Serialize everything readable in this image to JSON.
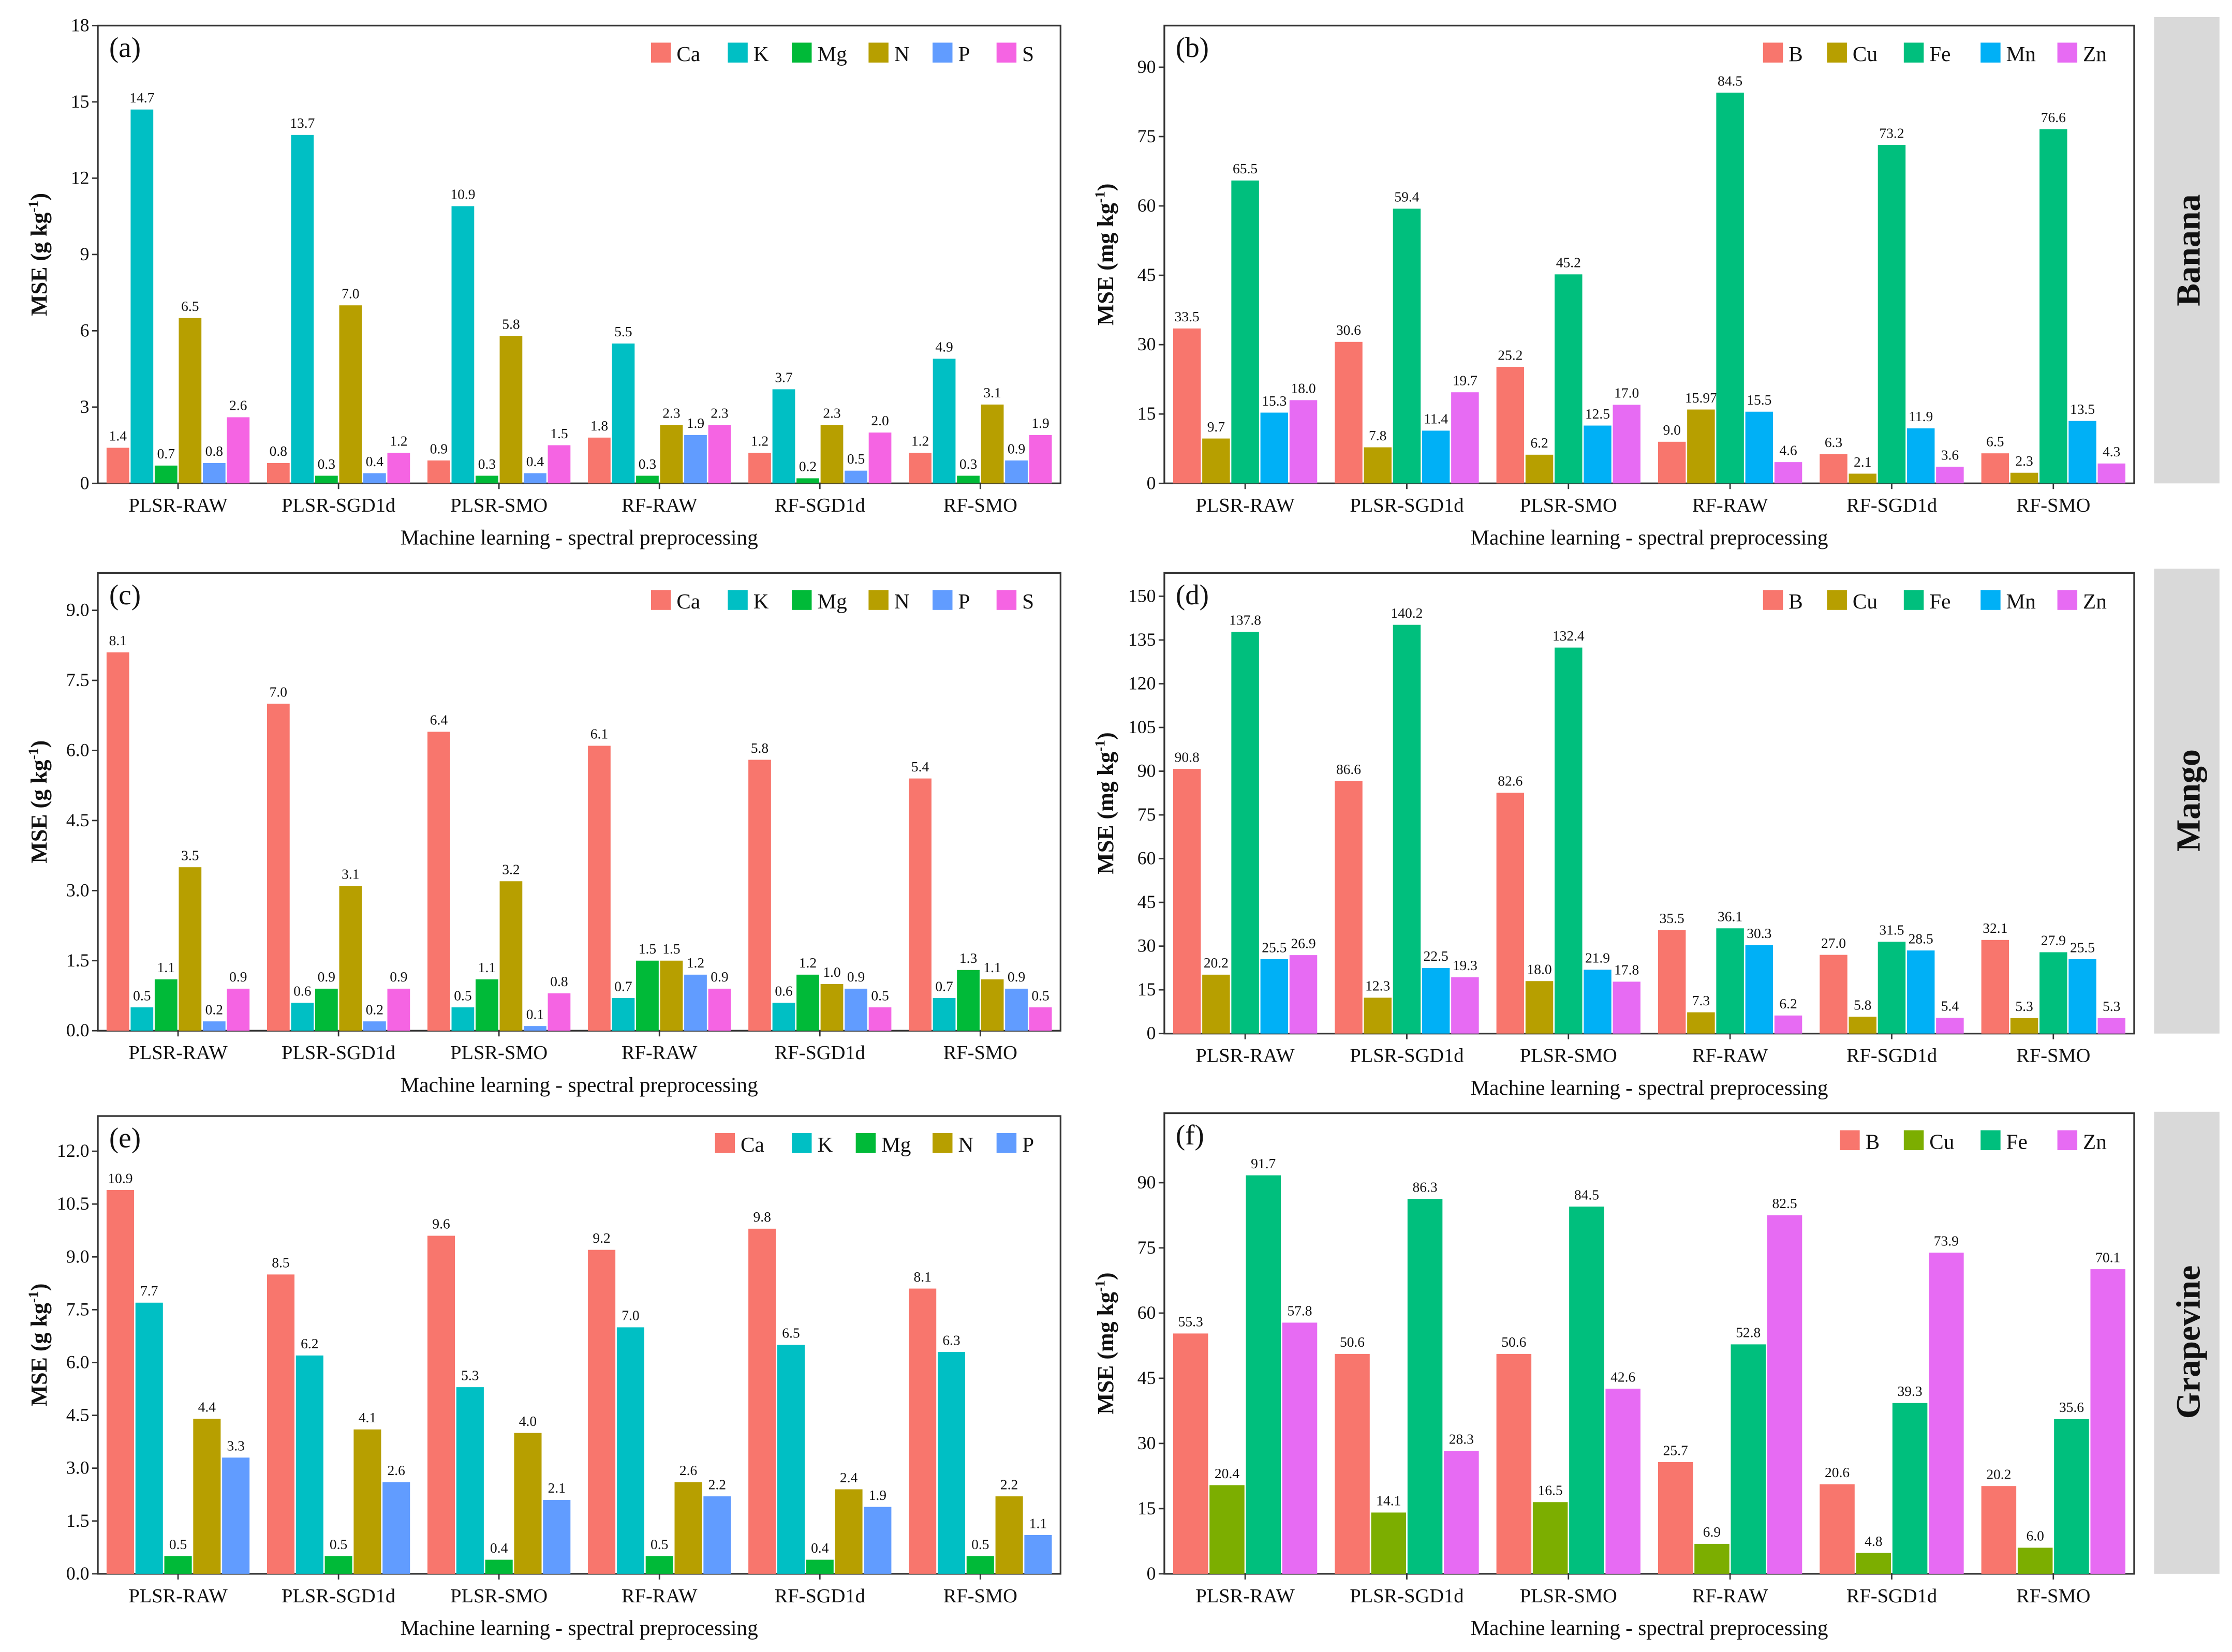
{
  "categories": [
    "PLSR-RAW",
    "PLSR-SGD1d",
    "PLSR-SMO",
    "RF-RAW",
    "RF-SGD1d",
    "RF-SMO"
  ],
  "xlabel": "Machine learning - spectral preprocessing",
  "row_labels": [
    "Banana",
    "Mango",
    "Grapevine"
  ],
  "chart_data": [
    {
      "type": "bar",
      "panel": "(a)",
      "ylabel": "MSE (g kg",
      "ylabel_sup": "-1",
      "ylabel_end": ")",
      "ylim": [
        0,
        18
      ],
      "yticks": [
        0,
        3,
        6,
        9,
        12,
        15,
        18
      ],
      "legend": "top-right",
      "grid": false,
      "series": [
        {
          "name": "Ca",
          "color": "#F8766D",
          "values": [
            1.4,
            0.8,
            0.9,
            1.8,
            1.2,
            1.2
          ],
          "labels": [
            "1.4",
            "0.8",
            "0.9",
            "1.8",
            "1.2",
            "1.2"
          ]
        },
        {
          "name": "K",
          "color": "#00BFC4",
          "values": [
            14.7,
            13.7,
            10.9,
            5.5,
            3.7,
            4.9
          ],
          "labels": [
            "14.7",
            "13.7",
            "10.9",
            "5.5",
            "3.7",
            "4.9"
          ]
        },
        {
          "name": "Mg",
          "color": "#00BA38",
          "values": [
            0.7,
            0.3,
            0.3,
            0.3,
            0.2,
            0.3
          ],
          "labels": [
            "0.7",
            "0.3",
            "0.3",
            "0.3",
            "0.2",
            "0.3"
          ]
        },
        {
          "name": "N",
          "color": "#B79F00",
          "values": [
            6.5,
            7.0,
            5.8,
            2.3,
            2.3,
            3.1
          ],
          "labels": [
            "6.5",
            "7.0",
            "5.8",
            "2.3",
            "2.3",
            "3.1"
          ]
        },
        {
          "name": "P",
          "color": "#619CFF",
          "values": [
            0.8,
            0.4,
            0.4,
            1.9,
            0.5,
            0.9
          ],
          "labels": [
            "0.8",
            "0.4",
            "0.4",
            "1.9",
            "0.5",
            "0.9"
          ]
        },
        {
          "name": "S",
          "color": "#F564E3",
          "values": [
            2.6,
            1.2,
            1.5,
            2.3,
            2.0,
            1.9
          ],
          "labels": [
            "2.6",
            "1.2",
            "1.5",
            "2.3",
            "2.0",
            "1.9"
          ]
        }
      ]
    },
    {
      "type": "bar",
      "panel": "(b)",
      "ylabel": "MSE (mg kg",
      "ylabel_sup": "-1",
      "ylabel_end": ")",
      "ylim": [
        0,
        99
      ],
      "yticks": [
        0,
        15,
        30,
        45,
        60,
        75,
        90
      ],
      "legend": "top-right",
      "grid": false,
      "series": [
        {
          "name": "B",
          "color": "#F8766D",
          "values": [
            33.5,
            30.6,
            25.2,
            9.0,
            6.3,
            6.5
          ],
          "labels": [
            "33.5",
            "30.6",
            "25.2",
            "9.0",
            "6.3",
            "6.5"
          ]
        },
        {
          "name": "Cu",
          "color": "#B79F00",
          "values": [
            9.7,
            7.8,
            6.2,
            15.97,
            2.1,
            2.3
          ],
          "labels": [
            "9.7",
            "7.8",
            "6.2",
            "15.97",
            "2.1",
            "2.3"
          ]
        },
        {
          "name": "Fe",
          "color": "#00BF7D",
          "values": [
            65.5,
            59.4,
            45.2,
            84.5,
            73.2,
            76.6
          ],
          "labels": [
            "65.5",
            "59.4",
            "45.2",
            "84.5",
            "73.2",
            "76.6"
          ]
        },
        {
          "name": "Mn",
          "color": "#00B0F6",
          "values": [
            15.3,
            11.4,
            12.5,
            15.5,
            11.9,
            13.5
          ],
          "labels": [
            "15.3",
            "11.4",
            "12.5",
            "15.5",
            "11.9",
            "13.5"
          ]
        },
        {
          "name": "Zn",
          "color": "#E76BF3",
          "values": [
            18.0,
            19.7,
            17.0,
            4.6,
            3.6,
            4.3
          ],
          "labels": [
            "18.0",
            "19.7",
            "17.0",
            "4.6",
            "3.6",
            "4.3"
          ]
        }
      ]
    },
    {
      "type": "bar",
      "panel": "(c)",
      "ylabel": "MSE (g kg",
      "ylabel_sup": "-1",
      "ylabel_end": ")",
      "ylim": [
        0,
        9.8
      ],
      "yticks": [
        "0.0",
        "1.5",
        "3.0",
        "4.5",
        "6.0",
        "7.5",
        "9.0"
      ],
      "legend": "top-right",
      "grid": false,
      "series": [
        {
          "name": "Ca",
          "color": "#F8766D",
          "values": [
            8.1,
            7.0,
            6.4,
            6.1,
            5.8,
            5.4
          ],
          "labels": [
            "8.1",
            "7.0",
            "6.4",
            "6.1",
            "5.8",
            "5.4"
          ]
        },
        {
          "name": "K",
          "color": "#00BFC4",
          "values": [
            0.5,
            0.6,
            0.5,
            0.7,
            0.6,
            0.7
          ],
          "labels": [
            "0.5",
            "0.6",
            "0.5",
            "0.7",
            "0.6",
            "0.7"
          ]
        },
        {
          "name": "Mg",
          "color": "#00BA38",
          "values": [
            1.1,
            0.9,
            1.1,
            1.5,
            1.2,
            1.3
          ],
          "labels": [
            "1.1",
            "0.9",
            "1.1",
            "1.5",
            "1.2",
            "1.3"
          ]
        },
        {
          "name": "N",
          "color": "#B79F00",
          "values": [
            3.5,
            3.1,
            3.2,
            1.5,
            1.0,
            1.1
          ],
          "labels": [
            "3.5",
            "3.1",
            "3.2",
            "1.5",
            "1.0",
            "1.1"
          ]
        },
        {
          "name": "P",
          "color": "#619CFF",
          "values": [
            0.2,
            0.2,
            0.1,
            1.2,
            0.9,
            0.9
          ],
          "labels": [
            "0.2",
            "0.2",
            "0.1",
            "1.2",
            "0.9",
            "0.9"
          ]
        },
        {
          "name": "S",
          "color": "#F564E3",
          "values": [
            0.9,
            0.9,
            0.8,
            0.9,
            0.5,
            0.5
          ],
          "labels": [
            "0.9",
            "0.9",
            "0.8",
            "0.9",
            "0.5",
            "0.5"
          ]
        }
      ]
    },
    {
      "type": "bar",
      "panel": "(d)",
      "ylabel": "MSE (mg kg",
      "ylabel_sup": "-1",
      "ylabel_end": ")",
      "ylim": [
        0,
        158
      ],
      "yticks": [
        "0",
        "15",
        "30",
        "45",
        "60",
        "75",
        "90",
        "105",
        "120",
        "135",
        "150"
      ],
      "legend": "top-right",
      "grid": false,
      "series": [
        {
          "name": "B",
          "color": "#F8766D",
          "values": [
            90.8,
            86.6,
            82.6,
            35.5,
            27.0,
            32.1
          ],
          "labels": [
            "90.8",
            "86.6",
            "82.6",
            "35.5",
            "27.0",
            "32.1"
          ]
        },
        {
          "name": "Cu",
          "color": "#B79F00",
          "values": [
            20.2,
            12.3,
            18.0,
            7.3,
            5.8,
            5.3
          ],
          "labels": [
            "20.2",
            "12.3",
            "18.0",
            "7.3",
            "5.8",
            "5.3"
          ]
        },
        {
          "name": "Fe",
          "color": "#00BF7D",
          "values": [
            137.8,
            140.2,
            132.4,
            36.1,
            31.5,
            27.9
          ],
          "labels": [
            "137.8",
            "140.2",
            "132.4",
            "36.1",
            "31.5",
            "27.9"
          ]
        },
        {
          "name": "Mn",
          "color": "#00B0F6",
          "values": [
            25.5,
            22.5,
            21.9,
            30.3,
            28.5,
            25.5
          ],
          "labels": [
            "25.5",
            "22.5",
            "21.9",
            "30.3",
            "28.5",
            "25.5"
          ]
        },
        {
          "name": "Zn",
          "color": "#E76BF3",
          "values": [
            26.9,
            19.3,
            17.8,
            6.2,
            5.4,
            5.3
          ],
          "labels": [
            "26.9",
            "19.3",
            "17.8",
            "6.2",
            "5.4",
            "5.3"
          ]
        }
      ]
    },
    {
      "type": "bar",
      "panel": "(e)",
      "ylabel": "MSE (g kg",
      "ylabel_sup": "-1",
      "ylabel_end": ")",
      "ylim": [
        0,
        13
      ],
      "yticks": [
        "0.0",
        "1.5",
        "3.0",
        "4.5",
        "6.0",
        "7.5",
        "9.0",
        "10.5",
        "12.0"
      ],
      "legend": "top-right",
      "grid": false,
      "series": [
        {
          "name": "Ca",
          "color": "#F8766D",
          "values": [
            10.9,
            8.5,
            9.6,
            9.2,
            9.8,
            8.1
          ],
          "labels": [
            "10.9",
            "8.5",
            "9.6",
            "9.2",
            "9.8",
            "8.1"
          ]
        },
        {
          "name": "K",
          "color": "#00BFC4",
          "values": [
            7.7,
            6.2,
            5.3,
            7.0,
            6.5,
            6.3
          ],
          "labels": [
            "7.7",
            "6.2",
            "5.3",
            "7.0",
            "6.5",
            "6.3"
          ]
        },
        {
          "name": "Mg",
          "color": "#00BA38",
          "values": [
            0.5,
            0.5,
            0.4,
            0.5,
            0.4,
            0.5
          ],
          "labels": [
            "0.5",
            "0.5",
            "0.4",
            "0.5",
            "0.4",
            "0.5"
          ]
        },
        {
          "name": "N",
          "color": "#B79F00",
          "values": [
            4.4,
            4.1,
            4.0,
            2.6,
            2.4,
            2.2
          ],
          "labels": [
            "4.4",
            "4.1",
            "4.0",
            "2.6",
            "2.4",
            "2.2"
          ]
        },
        {
          "name": "P",
          "color": "#619CFF",
          "values": [
            3.3,
            2.6,
            2.1,
            2.2,
            1.9,
            1.1
          ],
          "labels": [
            "3.3",
            "2.6",
            "2.1",
            "2.2",
            "1.9",
            "1.1"
          ]
        }
      ]
    },
    {
      "type": "bar",
      "panel": "(f)",
      "ylabel": "MSE (mg kg",
      "ylabel_sup": "-1",
      "ylabel_end": ")",
      "ylim": [
        0,
        106
      ],
      "yticks": [
        "0",
        "15",
        "30",
        "45",
        "60",
        "75",
        "90"
      ],
      "legend": "top-right",
      "grid": false,
      "series": [
        {
          "name": "B",
          "color": "#F8766D",
          "values": [
            55.3,
            50.6,
            50.6,
            25.7,
            20.6,
            20.2
          ],
          "labels": [
            "55.3",
            "50.6",
            "50.6",
            "25.7",
            "20.6",
            "20.2"
          ]
        },
        {
          "name": "Cu",
          "color": "#7CAE00",
          "values": [
            20.4,
            14.1,
            16.5,
            6.9,
            4.8,
            6.0
          ],
          "labels": [
            "20.4",
            "14.1",
            "16.5",
            "6.9",
            "4.8",
            "6.0"
          ]
        },
        {
          "name": "Fe",
          "color": "#00BF7D",
          "values": [
            91.7,
            86.3,
            84.5,
            52.8,
            39.3,
            35.6
          ],
          "labels": [
            "91.7",
            "86.3",
            "84.5",
            "52.8",
            "39.3",
            "35.6"
          ]
        },
        {
          "name": "Zn",
          "color": "#E76BF3",
          "values": [
            57.8,
            28.3,
            42.6,
            82.5,
            73.9,
            70.1
          ],
          "labels": [
            "57.8",
            "28.3",
            "42.6",
            "82.5",
            "73.9",
            "70.1"
          ]
        }
      ]
    }
  ]
}
